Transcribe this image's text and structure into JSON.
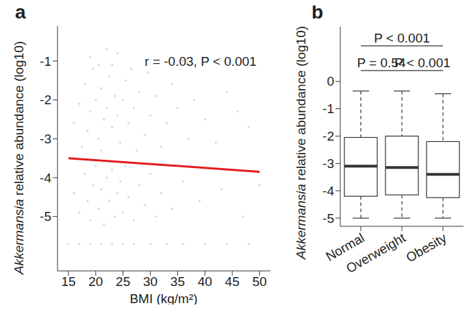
{
  "chart_data": [
    {
      "type": "scatter",
      "title": "a",
      "x_label": "BMI (kg/m²)",
      "y_label": "Akkermansia relative abundance (log10)",
      "annotation": "r = -0.03, P < 0.001",
      "color": "#d7dada",
      "x": [
        17,
        18,
        18.5,
        19,
        19.5,
        20,
        20.5,
        21,
        21.5,
        22,
        22.5,
        23,
        23.5,
        24,
        24.5,
        25,
        25.5,
        26,
        27,
        28,
        29,
        30,
        31,
        33,
        35,
        37,
        40,
        44,
        48,
        16,
        17.5,
        19,
        20.5,
        21,
        22,
        23,
        24,
        26.5,
        27.5,
        29.5,
        32,
        34,
        36,
        38,
        42,
        46,
        16,
        17,
        18,
        18.5,
        19,
        19.5,
        20,
        20.5,
        21,
        21.5,
        22,
        22.5,
        23,
        23.5,
        24,
        24.5,
        25,
        25.5,
        26,
        27,
        28,
        29,
        30,
        31,
        32,
        34,
        36,
        39,
        43,
        47,
        50,
        15,
        17,
        19,
        21,
        23,
        25,
        27,
        30,
        33,
        36,
        40,
        44,
        48
      ],
      "y": [
        -2.1,
        -1.6,
        -2.8,
        -2.3,
        -1.2,
        -2,
        -3,
        -1.7,
        -2.5,
        -2.2,
        -1.4,
        -2.7,
        -1.9,
        -2.4,
        -3.1,
        -2,
        -1.5,
        -2.6,
        -2.2,
        -1.8,
        -2.9,
        -2.4,
        -1.9,
        -2.6,
        -2.2,
        -3,
        -2.5,
        -1.8,
        -2.7,
        -2.6,
        -3.2,
        -0.9,
        -1.1,
        -3.3,
        -0.7,
        -1.1,
        -0.8,
        -1.2,
        -3.3,
        -1.3,
        -3.2,
        -1.6,
        -1,
        -2,
        -3.1,
        -2.3,
        -4.4,
        -4.9,
        -3.9,
        -4.6,
        -5.1,
        -4.2,
        -3.7,
        -4.8,
        -4.3,
        -5.2,
        -4,
        -4.6,
        -3.8,
        -5,
        -4.4,
        -4.1,
        -4.9,
        -3.7,
        -4.5,
        -5.1,
        -4.2,
        -4.7,
        -3.9,
        -5,
        -4.4,
        -4.8,
        -4.1,
        -4.6,
        -4.3,
        -5,
        -4.2,
        -5.7,
        -5.7,
        -5.7,
        -5.7,
        -5.7,
        -5.7,
        -5.7,
        -5.7,
        -5.7,
        -5.7,
        -5.7,
        -5.7,
        -5.7
      ],
      "fit": {
        "x": [
          15,
          50
        ],
        "y": [
          -3.5,
          -3.85
        ],
        "color": "#e41a1c"
      },
      "xlim": [
        13,
        52
      ],
      "xticks": [
        15,
        20,
        25,
        30,
        35,
        40,
        45,
        50
      ],
      "ylim": [
        -6.4,
        -0.1
      ],
      "yticks": [
        -5,
        -4,
        -3,
        -2,
        -1
      ]
    },
    {
      "type": "box",
      "title": "b",
      "y_label": "Akkermansia relative abundance (log10)",
      "categories": [
        "Normal",
        "Overweight",
        "Obesity"
      ],
      "whisker_low": [
        -5,
        -5,
        -5
      ],
      "q1": [
        -4.2,
        -4.15,
        -4.25
      ],
      "median": [
        -3.1,
        -3.15,
        -3.4
      ],
      "q3": [
        -2.05,
        -2,
        -2.2
      ],
      "whisker_high": [
        -0.35,
        -0.35,
        -0.45
      ],
      "ylim": [
        -5.3,
        2
      ],
      "yticks": [
        -5,
        -4,
        -3,
        -2,
        -1,
        0
      ],
      "comparisons": [
        {
          "from": 0,
          "to": 1,
          "label": "P = 0.54"
        },
        {
          "from": 1,
          "to": 2,
          "label": "P < 0.001"
        },
        {
          "from": 0,
          "to": 2,
          "label": "P < 0.001"
        }
      ]
    }
  ]
}
